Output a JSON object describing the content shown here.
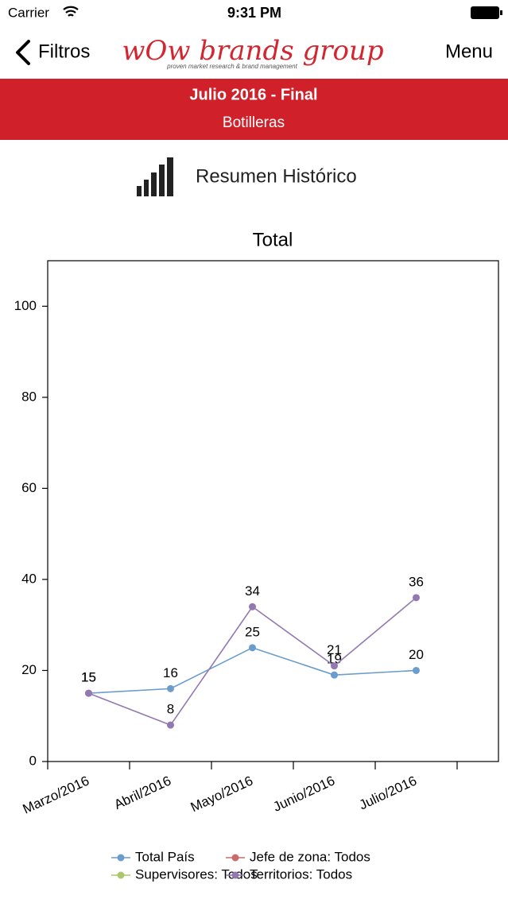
{
  "status_bar": {
    "carrier": "Carrier",
    "time": "9:31 PM"
  },
  "nav": {
    "back": "Filtros",
    "logo": "wOw brands group",
    "logo_tagline": "proven market research & brand management",
    "menu": "Menu"
  },
  "banner": {
    "title": "Julio 2016 - Final",
    "subtitle": "Botilleras"
  },
  "section": {
    "title": "Resumen Histórico"
  },
  "chart_data": {
    "type": "line",
    "title": "Total",
    "categories": [
      "Marzo/2016",
      "Abril/2016",
      "Mayo/2016",
      "Junio/2016",
      "Julio/2016"
    ],
    "series": [
      {
        "name": "Total País",
        "color": "#6a9ccc",
        "values": [
          15,
          16,
          25,
          19,
          20
        ]
      },
      {
        "name": "Jefe de zona: Todos",
        "color": "#c86b6b",
        "values": [
          null,
          null,
          null,
          null,
          null
        ]
      },
      {
        "name": "Supervisores: Todos",
        "color": "#a9c96b",
        "values": [
          null,
          null,
          null,
          null,
          null
        ]
      },
      {
        "name": "Territorios: Todos",
        "color": "#9379b0",
        "values": [
          15,
          8,
          34,
          21,
          36
        ]
      }
    ],
    "ylim": [
      0,
      110
    ],
    "yticks": [
      0,
      20,
      40,
      60,
      80,
      100
    ],
    "grid": false
  }
}
